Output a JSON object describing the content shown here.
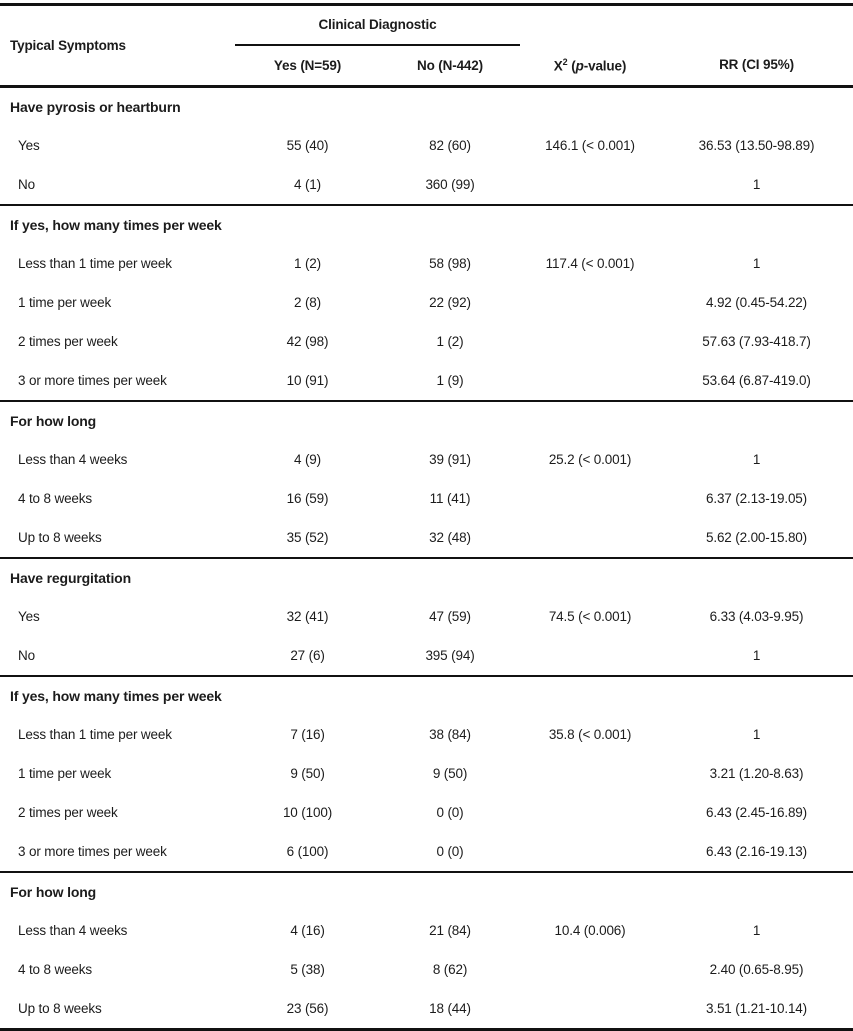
{
  "colors": {
    "text": "#1c1c1c",
    "rule": "#111111",
    "background": "#ffffff"
  },
  "table": {
    "header": {
      "typical_symptoms": "Typical Symptoms",
      "clinical_diagnostic": "Clinical Diagnostic",
      "yes": "Yes (N=59)",
      "no": "No (N-442)",
      "chi": {
        "x": "X",
        "sup": "2",
        "mid": " (",
        "p": "p",
        "end": "-value)"
      },
      "rr": "RR (CI 95%)"
    },
    "sections": [
      {
        "header": "Have pyrosis or heartburn",
        "rows": [
          {
            "label": "Yes",
            "yes": "55 (40)",
            "no": "82 (60)",
            "x2": "146.1 (< 0.001)",
            "rr": "36.53 (13.50-98.89)"
          },
          {
            "label": "No",
            "yes": "4 (1)",
            "no": "360 (99)",
            "x2": "",
            "rr": "1"
          }
        ]
      },
      {
        "header": "If yes, how many times per week",
        "rows": [
          {
            "label": "Less than 1 time per week",
            "yes": "1 (2)",
            "no": "58 (98)",
            "x2": "117.4 (< 0.001)",
            "rr": "1"
          },
          {
            "label": "1 time per week",
            "yes": "2 (8)",
            "no": "22 (92)",
            "x2": "",
            "rr": "4.92 (0.45-54.22)"
          },
          {
            "label": "2 times per week",
            "yes": "42 (98)",
            "no": "1 (2)",
            "x2": "",
            "rr": "57.63 (7.93-418.7)"
          },
          {
            "label": "3 or more times per week",
            "yes": "10 (91)",
            "no": "1 (9)",
            "x2": "",
            "rr": "53.64 (6.87-419.0)"
          }
        ]
      },
      {
        "header": "For how long",
        "rows": [
          {
            "label": "Less than 4 weeks",
            "yes": "4 (9)",
            "no": "39 (91)",
            "x2": "25.2 (< 0.001)",
            "rr": "1"
          },
          {
            "label": "4 to 8 weeks",
            "yes": "16 (59)",
            "no": "11 (41)",
            "x2": "",
            "rr": "6.37 (2.13-19.05)"
          },
          {
            "label": "Up to 8 weeks",
            "yes": "35 (52)",
            "no": "32 (48)",
            "x2": "",
            "rr": "5.62 (2.00-15.80)"
          }
        ]
      },
      {
        "header": "Have regurgitation",
        "rows": [
          {
            "label": "Yes",
            "yes": "32 (41)",
            "no": "47 (59)",
            "x2": "74.5 (< 0.001)",
            "rr": "6.33 (4.03-9.95)"
          },
          {
            "label": "No",
            "yes": "27 (6)",
            "no": "395 (94)",
            "x2": "",
            "rr": "1"
          }
        ]
      },
      {
        "header": "If yes, how many times per week",
        "rows": [
          {
            "label": "Less than 1 time per week",
            "yes": "7 (16)",
            "no": "38 (84)",
            "x2": "35.8 (< 0.001)",
            "rr": "1"
          },
          {
            "label": "1 time per week",
            "yes": "9 (50)",
            "no": "9 (50)",
            "x2": "",
            "rr": "3.21 (1.20-8.63)"
          },
          {
            "label": "2 times per week",
            "yes": "10 (100)",
            "no": "0 (0)",
            "x2": "",
            "rr": "6.43 (2.45-16.89)"
          },
          {
            "label": "3 or more times per week",
            "yes": "6 (100)",
            "no": "0 (0)",
            "x2": "",
            "rr": "6.43 (2.16-19.13)"
          }
        ]
      },
      {
        "header": "For how long",
        "rows": [
          {
            "label": "Less than 4 weeks",
            "yes": "4 (16)",
            "no": "21 (84)",
            "x2": "10.4 (0.006)",
            "rr": "1"
          },
          {
            "label": "4 to 8 weeks",
            "yes": "5 (38)",
            "no": "8 (62)",
            "x2": "",
            "rr": "2.40 (0.65-8.95)"
          },
          {
            "label": "Up to 8 weeks",
            "yes": "23 (56)",
            "no": "18 (44)",
            "x2": "",
            "rr": "3.51 (1.21-10.14)"
          }
        ]
      }
    ]
  }
}
